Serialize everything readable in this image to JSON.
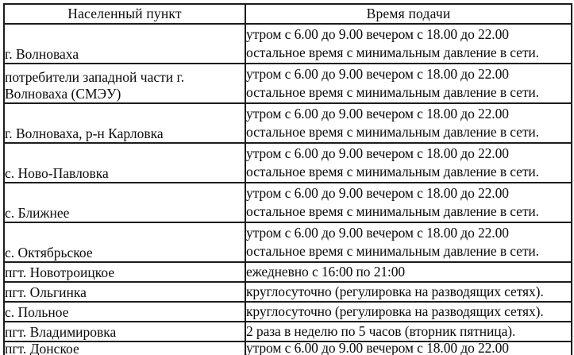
{
  "page": {
    "background_color": "#ffffff",
    "border_color": "#1c1c1c",
    "text_color": "#0a0a0a"
  },
  "table": {
    "columns": [
      {
        "label": "Населенный пункт"
      },
      {
        "label": "Время подачи"
      }
    ],
    "rows": [
      {
        "settlement": "г. Волноваха",
        "time_lines": [
          "утром с 6.00 до 9.00 вечером с 18.00 до 22.00",
          "остальное время с минимальным давление в сети."
        ]
      },
      {
        "settlement": "потребители западной части г. Волноваха (СМЭУ)",
        "time_lines": [
          "утром с 6.00 до 9.00 вечером с 18.00 до 22.00",
          "остальное время с минимальным давление в сети."
        ]
      },
      {
        "settlement": "г. Волноваха, р-н Карловка",
        "time_lines": [
          "утром с 6.00 до 9.00 вечером с 18.00 до 22.00",
          "остальное время с минимальным давление в сети."
        ]
      },
      {
        "settlement": "с. Ново-Павловка",
        "time_lines": [
          "утром с 6.00 до 9.00 вечером с 18.00 до 22.00",
          "остальное время с минимальным давление в сети."
        ]
      },
      {
        "settlement": "с. Ближнее",
        "time_lines": [
          "утром с 6.00 до 9.00 вечером с 18.00 до 22.00",
          "остальное время с минимальным давление в сети."
        ]
      },
      {
        "settlement": "с. Октябрьское",
        "time_lines": [
          "утром с 6.00 до 9.00 вечером с 18.00 до 22.00",
          "остальное время с минимальным давление в сети."
        ]
      },
      {
        "settlement": "пгт. Новотроицкое",
        "time_lines": [
          "ежедневно с 16:00 по 21:00"
        ]
      },
      {
        "settlement": "пгт. Ольгинка",
        "time_lines": [
          "круглосуточно (регулировка на разводящих сетях)."
        ]
      },
      {
        "settlement": "с. Польное",
        "time_lines": [
          "круглосуточно (регулировка на разводящих сетях)."
        ]
      },
      {
        "settlement": "пгт. Владимировка",
        "time_lines": [
          "2 раза в неделю по 5 часов (вторник пятница)."
        ]
      },
      {
        "settlement": "пгт. Донское",
        "time_lines": [
          "утром с 6.00 до 9.00 вечером с 18.00 до 22.00"
        ]
      }
    ]
  }
}
